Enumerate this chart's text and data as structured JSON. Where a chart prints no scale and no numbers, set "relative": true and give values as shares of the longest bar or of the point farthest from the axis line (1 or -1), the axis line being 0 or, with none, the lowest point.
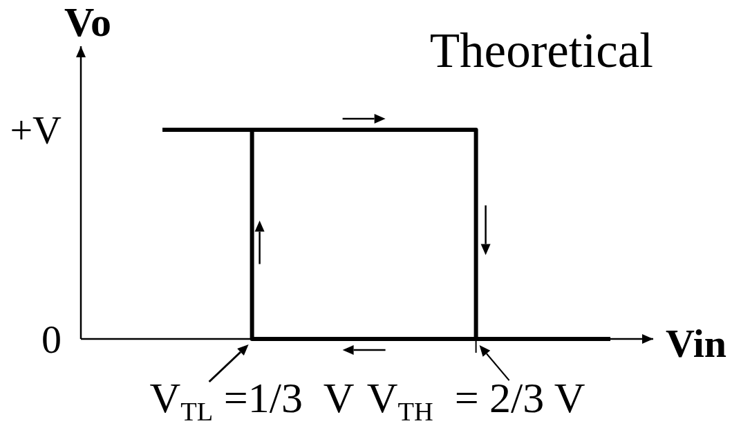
{
  "chart_data": {
    "type": "step",
    "title": "Theoretical",
    "xlabel": "Vin",
    "ylabel": "Vo",
    "relative": true,
    "categories": [
      null,
      null,
      "V$_{TL}$ =1/3  V",
      null,
      null,
      null,
      null,
      "V$_{TH}$  = 2/3 V",
      null,
      null,
      null
    ],
    "series": [
      {
        "color": "#000000",
        "values": [
          1,
          1,
          0,
          0,
          0,
          0,
          0,
          0,
          0,
          0,
          0
        ]
      },
      {
        "color": "#000000",
        "values": [
          1,
          1,
          1,
          1,
          1,
          1,
          1,
          0,
          0,
          0,
          0
        ]
      }
    ],
    "annotations": [
      "+V",
      "0"
    ]
  }
}
